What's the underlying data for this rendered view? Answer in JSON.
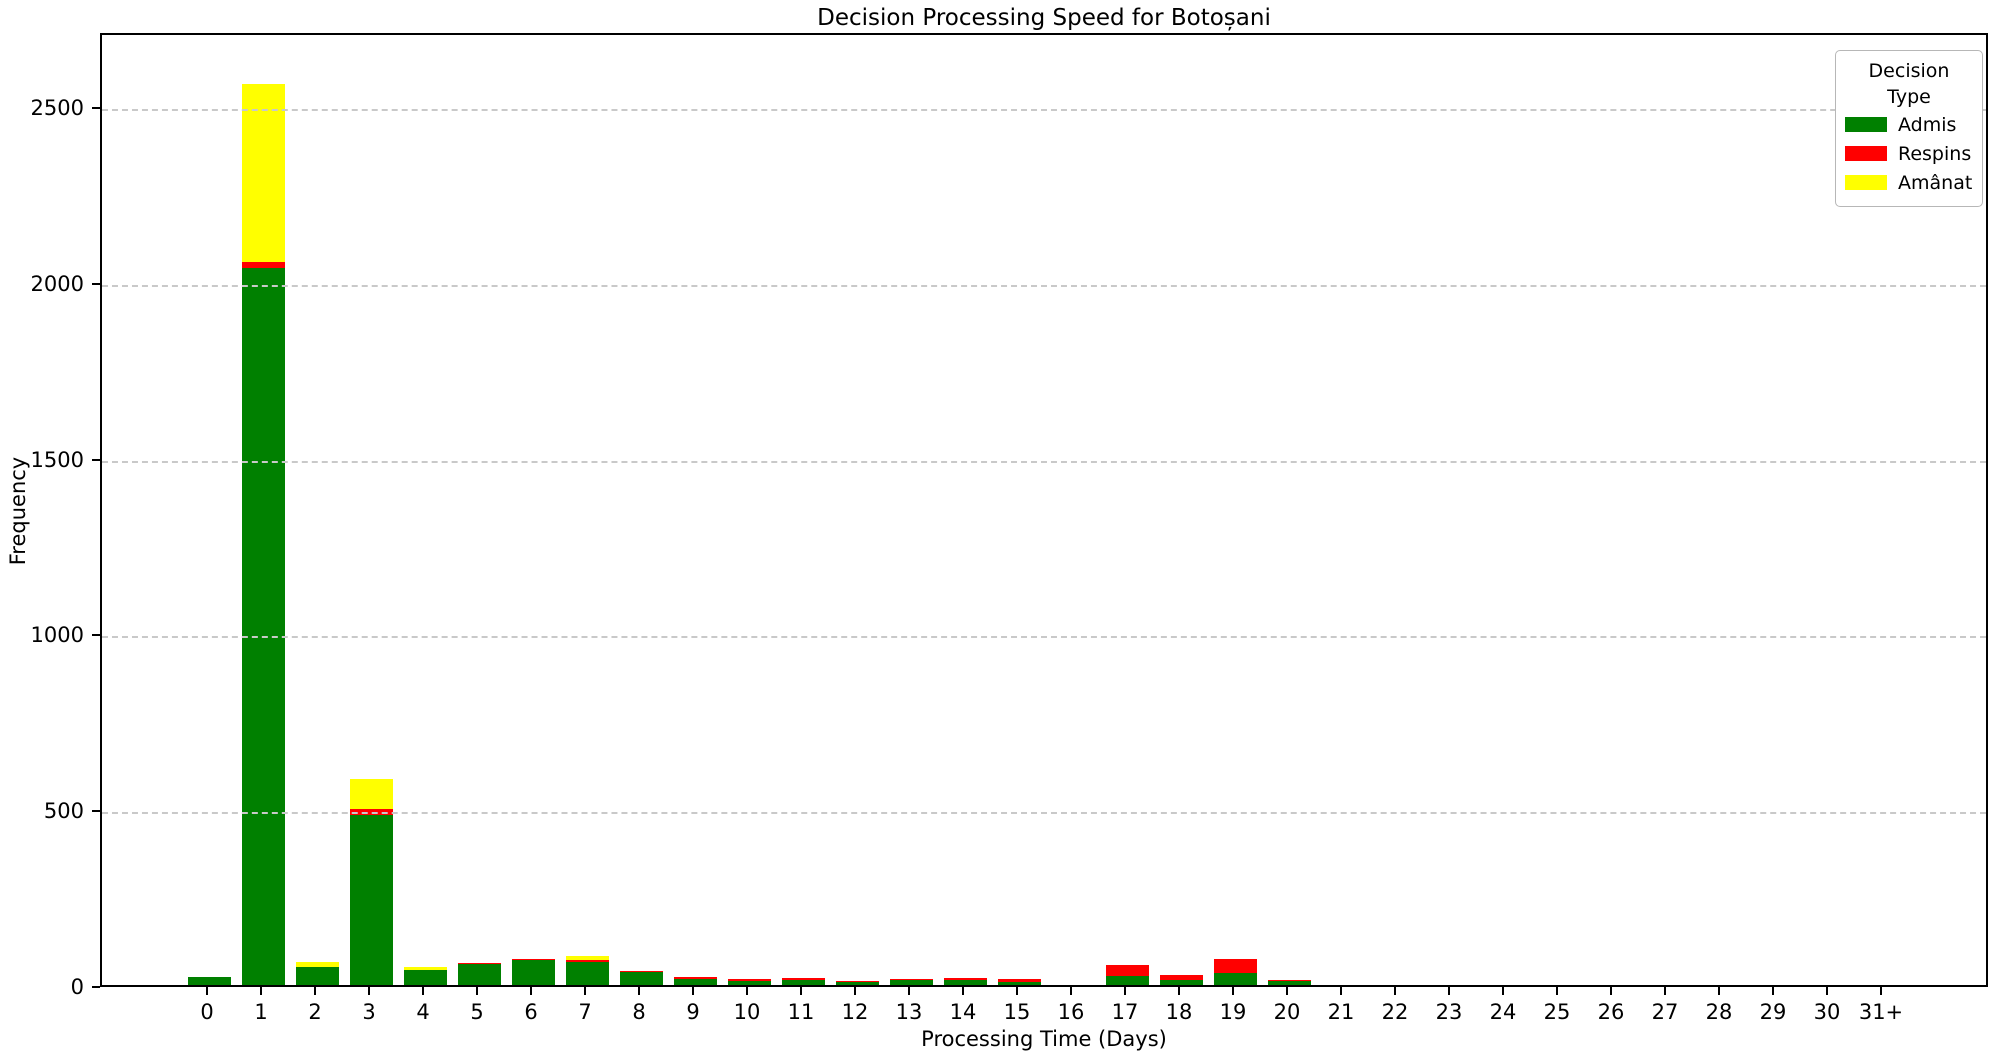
{
  "chart_data": {
    "type": "bar",
    "stacked": true,
    "title": "Decision Processing Speed for Botoșani",
    "xlabel": "Processing Time (Days)",
    "ylabel": "Frequency",
    "legend_title": "Decision Type",
    "legend_position": "top-right",
    "grid": "horizontal-dashed",
    "gridline_color": "#c9c9c9",
    "background_color": "#ffffff",
    "ylim": [
      0,
      2713
    ],
    "yticks": [
      0,
      500,
      1000,
      1500,
      2000,
      2500
    ],
    "categories": [
      "0",
      "1",
      "2",
      "3",
      "4",
      "5",
      "6",
      "7",
      "8",
      "9",
      "10",
      "11",
      "12",
      "13",
      "14",
      "15",
      "16",
      "17",
      "18",
      "19",
      "20",
      "21",
      "22",
      "23",
      "24",
      "25",
      "26",
      "27",
      "28",
      "29",
      "30",
      "31+"
    ],
    "series": [
      {
        "name": "Admis",
        "color": "#008000",
        "values": [
          23,
          2040,
          52,
          483,
          43,
          60,
          71,
          65,
          36,
          17,
          12,
          15,
          8,
          13,
          15,
          8,
          0,
          25,
          14,
          34,
          12,
          0,
          0,
          0,
          0,
          0,
          0,
          0,
          0,
          0,
          0,
          0
        ]
      },
      {
        "name": "Respins",
        "color": "#ff0000",
        "values": [
          0,
          17,
          0,
          18,
          0,
          3,
          3,
          6,
          4,
          6,
          6,
          6,
          2,
          4,
          4,
          8,
          0,
          32,
          14,
          40,
          2,
          0,
          0,
          0,
          0,
          0,
          0,
          0,
          0,
          0,
          0,
          0
        ]
      },
      {
        "name": "Amânat",
        "color": "#ffff00",
        "values": [
          0,
          505,
          14,
          85,
          8,
          0,
          0,
          11,
          0,
          0,
          0,
          0,
          0,
          0,
          0,
          0,
          0,
          0,
          0,
          0,
          0,
          0,
          0,
          0,
          0,
          0,
          0,
          0,
          0,
          0,
          0,
          0
        ]
      }
    ]
  }
}
